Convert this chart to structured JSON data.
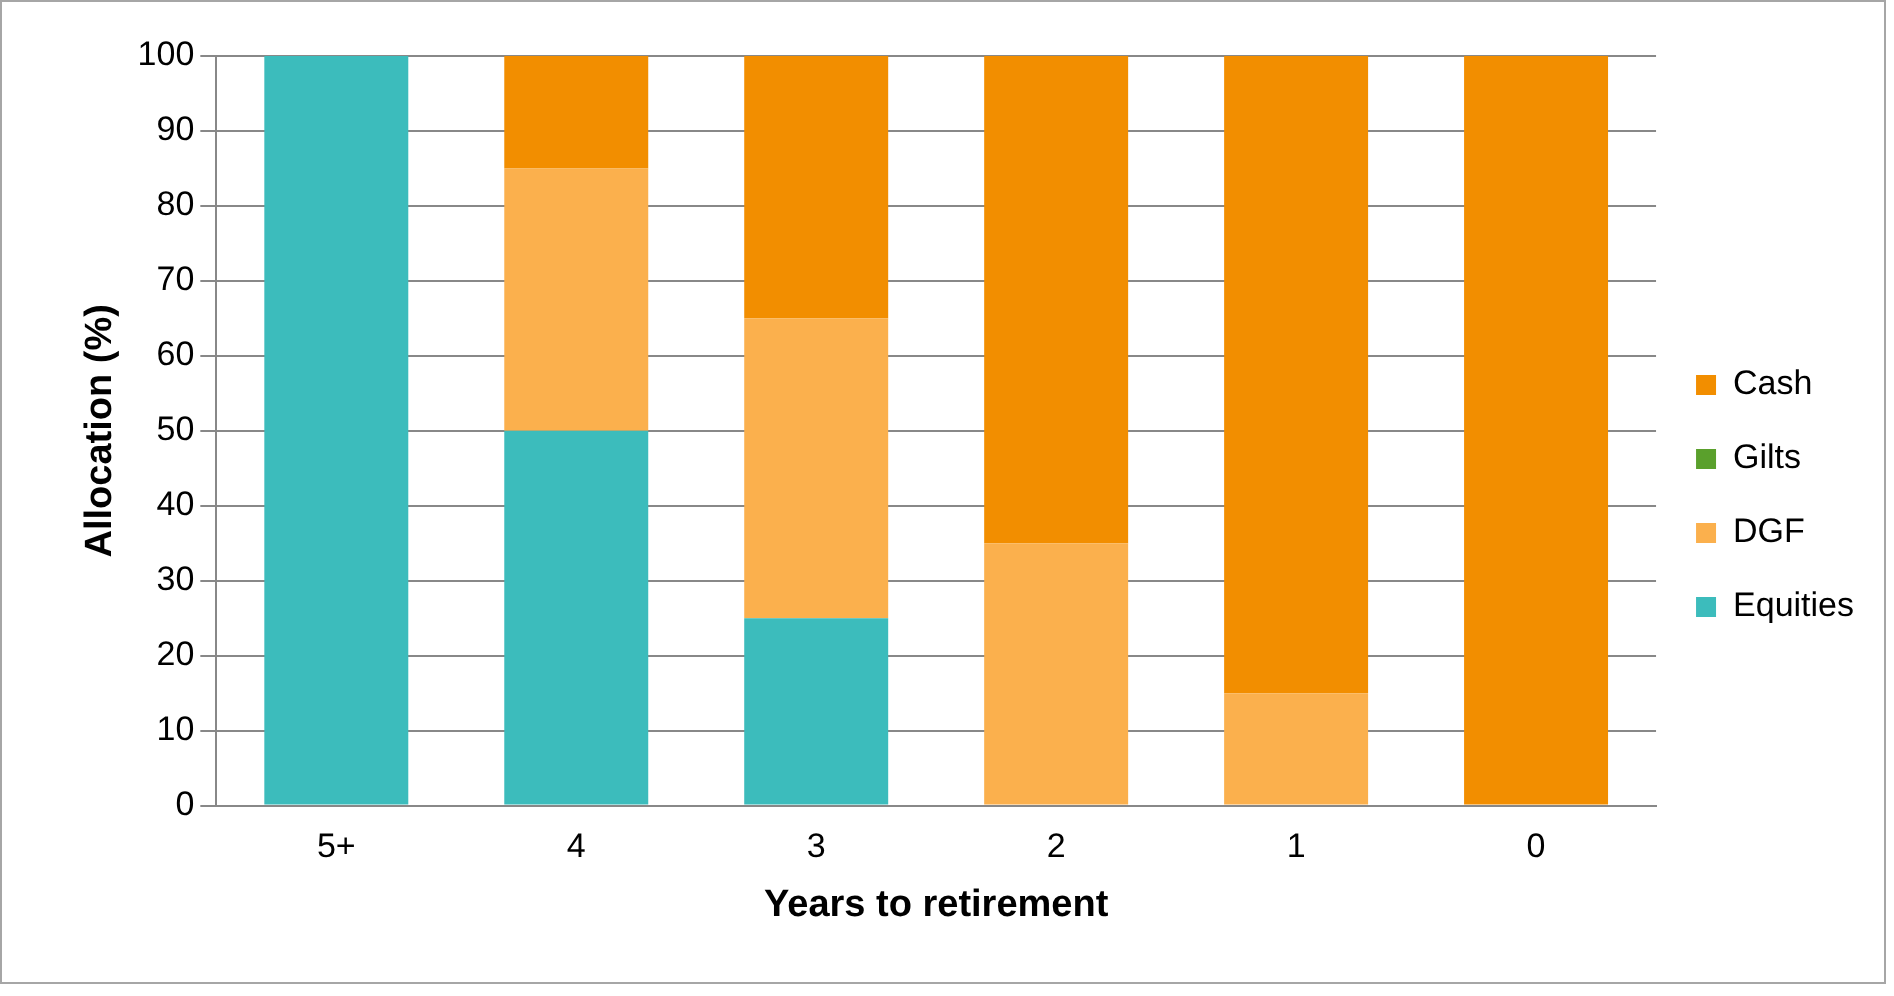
{
  "chart_data": {
    "type": "bar",
    "stacked": true,
    "xlabel": "Years to retirement",
    "ylabel": "Allocation (%)",
    "categories": [
      "5+",
      "4",
      "3",
      "2",
      "1",
      "0"
    ],
    "series": [
      {
        "name": "Equities",
        "color": "#3cbcbc",
        "values": [
          100,
          50,
          25,
          0,
          0,
          0
        ]
      },
      {
        "name": "DGF",
        "color": "#fbb04d",
        "values": [
          0,
          35,
          40,
          35,
          15,
          0
        ]
      },
      {
        "name": "Gilts",
        "color": "#5aa02c",
        "values": [
          0,
          0,
          0,
          0,
          0,
          0
        ]
      },
      {
        "name": "Cash",
        "color": "#f28e00",
        "values": [
          0,
          15,
          35,
          65,
          85,
          100
        ]
      }
    ],
    "ylim": [
      0,
      100
    ],
    "yticks": [
      0,
      10,
      20,
      30,
      40,
      50,
      60,
      70,
      80,
      90,
      100
    ],
    "grid": "y",
    "legend": "right"
  }
}
